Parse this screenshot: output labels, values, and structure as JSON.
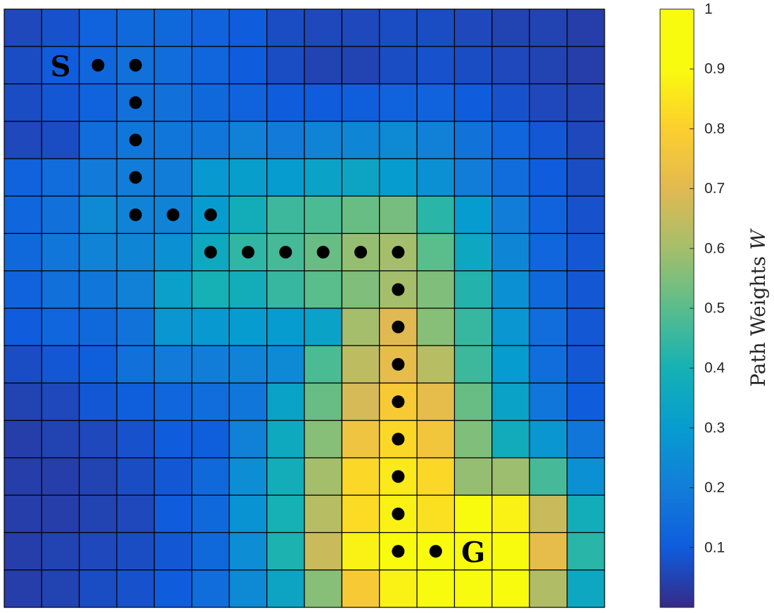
{
  "chart_data": {
    "type": "heatmap",
    "rows": 16,
    "cols": 16,
    "clim": [
      0,
      1
    ],
    "colormap": "parula",
    "grid": true,
    "colorbar": {
      "label": "Path Weights W",
      "label_plain": "Path Weights ",
      "label_var": "W",
      "ticks": [
        0.1,
        0.2,
        0.3,
        0.4,
        0.5,
        0.6,
        0.7,
        0.8,
        0.9,
        1
      ],
      "tick_labels": [
        "0.1",
        "0.2",
        "0.3",
        "0.4",
        "0.5",
        "0.6",
        "0.7",
        "0.8",
        "0.9",
        "1"
      ]
    },
    "values": [
      [
        0.06,
        0.08,
        0.12,
        0.14,
        0.14,
        0.12,
        0.1,
        0.07,
        0.06,
        0.06,
        0.07,
        0.07,
        0.06,
        0.05,
        0.05,
        0.04
      ],
      [
        0.07,
        0.1,
        0.13,
        0.16,
        0.15,
        0.13,
        0.1,
        0.07,
        0.05,
        0.05,
        0.07,
        0.08,
        0.07,
        0.06,
        0.05,
        0.04
      ],
      [
        0.07,
        0.09,
        0.12,
        0.16,
        0.16,
        0.14,
        0.12,
        0.1,
        0.1,
        0.11,
        0.12,
        0.12,
        0.1,
        0.08,
        0.06,
        0.05
      ],
      [
        0.06,
        0.07,
        0.15,
        0.18,
        0.18,
        0.18,
        0.21,
        0.19,
        0.22,
        0.23,
        0.24,
        0.21,
        0.17,
        0.13,
        0.09,
        0.06
      ],
      [
        0.12,
        0.15,
        0.19,
        0.2,
        0.2,
        0.29,
        0.31,
        0.3,
        0.33,
        0.34,
        0.3,
        0.26,
        0.2,
        0.15,
        0.1,
        0.07
      ],
      [
        0.13,
        0.16,
        0.24,
        0.22,
        0.22,
        0.3,
        0.38,
        0.46,
        0.48,
        0.52,
        0.54,
        0.43,
        0.3,
        0.2,
        0.12,
        0.08
      ],
      [
        0.14,
        0.18,
        0.22,
        0.23,
        0.26,
        0.36,
        0.44,
        0.47,
        0.52,
        0.58,
        0.6,
        0.5,
        0.35,
        0.23,
        0.13,
        0.09
      ],
      [
        0.12,
        0.16,
        0.18,
        0.21,
        0.32,
        0.4,
        0.38,
        0.45,
        0.5,
        0.55,
        0.6,
        0.55,
        0.42,
        0.26,
        0.14,
        0.09
      ],
      [
        0.1,
        0.13,
        0.14,
        0.17,
        0.28,
        0.29,
        0.3,
        0.3,
        0.33,
        0.6,
        0.7,
        0.56,
        0.45,
        0.28,
        0.15,
        0.09
      ],
      [
        0.07,
        0.09,
        0.11,
        0.16,
        0.19,
        0.2,
        0.22,
        0.24,
        0.48,
        0.64,
        0.72,
        0.63,
        0.46,
        0.3,
        0.15,
        0.09
      ],
      [
        0.05,
        0.06,
        0.09,
        0.11,
        0.13,
        0.15,
        0.18,
        0.33,
        0.52,
        0.68,
        0.78,
        0.72,
        0.52,
        0.33,
        0.18,
        0.1
      ],
      [
        0.04,
        0.05,
        0.06,
        0.08,
        0.1,
        0.11,
        0.21,
        0.36,
        0.56,
        0.75,
        0.82,
        0.76,
        0.55,
        0.37,
        0.28,
        0.18
      ],
      [
        0.04,
        0.04,
        0.05,
        0.07,
        0.09,
        0.14,
        0.25,
        0.38,
        0.6,
        0.82,
        0.86,
        0.82,
        0.58,
        0.59,
        0.47,
        0.26
      ],
      [
        0.04,
        0.04,
        0.05,
        0.06,
        0.1,
        0.14,
        0.27,
        0.4,
        0.63,
        0.83,
        0.88,
        0.84,
        0.97,
        0.88,
        0.66,
        0.38
      ],
      [
        0.04,
        0.05,
        0.06,
        0.07,
        0.09,
        0.14,
        0.25,
        0.41,
        0.66,
        0.88,
        0.96,
        0.97,
        0.98,
        0.94,
        0.72,
        0.43
      ],
      [
        0.04,
        0.05,
        0.07,
        0.08,
        0.1,
        0.15,
        0.24,
        0.34,
        0.56,
        0.78,
        0.88,
        0.94,
        0.96,
        0.9,
        0.62,
        0.35
      ]
    ],
    "path": [
      [
        1,
        2
      ],
      [
        1,
        3
      ],
      [
        2,
        3
      ],
      [
        3,
        3
      ],
      [
        4,
        3
      ],
      [
        5,
        3
      ],
      [
        5,
        4
      ],
      [
        5,
        5
      ],
      [
        6,
        5
      ],
      [
        6,
        6
      ],
      [
        6,
        7
      ],
      [
        6,
        8
      ],
      [
        6,
        9
      ],
      [
        6,
        10
      ],
      [
        7,
        10
      ],
      [
        8,
        10
      ],
      [
        9,
        10
      ],
      [
        10,
        10
      ],
      [
        11,
        10
      ],
      [
        12,
        10
      ],
      [
        13,
        10
      ],
      [
        14,
        10
      ],
      [
        14,
        11
      ]
    ],
    "start": {
      "label": "S",
      "row": 1,
      "col": 1
    },
    "goal": {
      "label": "G",
      "row": 14,
      "col": 12
    }
  }
}
